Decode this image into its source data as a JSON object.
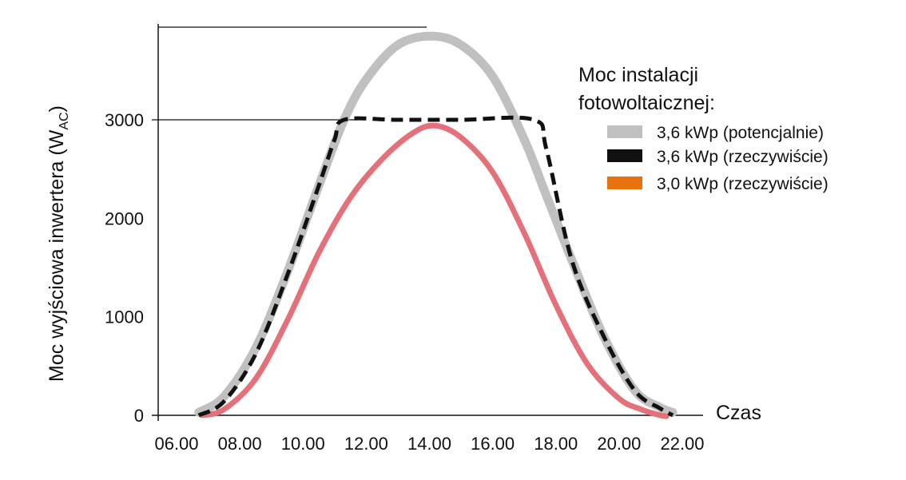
{
  "chart_data": {
    "type": "line",
    "ylabel": "Moc wyjściowa inwertera (W",
    "ylabel_sub": "AC",
    "ylabel_close": ")",
    "xlabel": "Czas",
    "x_ticks": [
      "06.00",
      "08.00",
      "10.00",
      "12.00",
      "14.00",
      "16.00",
      "18.00",
      "20.00",
      "22.00"
    ],
    "y_ticks": [
      "0",
      "1000",
      "2000",
      "3000"
    ],
    "xlim": [
      6,
      22
    ],
    "ylim": [
      0,
      3900
    ],
    "legend_title_line1": "Moc instalacji",
    "legend_title_line2": "fotowoltaicznej:",
    "series": [
      {
        "name": "3,6 kWp (potencjalnie)",
        "color": "#c0c0c0",
        "style": "solid",
        "x": [
          6.7,
          7.5,
          8.5,
          9.5,
          10.5,
          11.3,
          12.0,
          13.0,
          14.05,
          15.0,
          16.0,
          17.0,
          17.7,
          18.5,
          19.5,
          20.5,
          21.3,
          21.7
        ],
        "y": [
          30,
          190,
          680,
          1450,
          2330,
          3000,
          3410,
          3760,
          3850,
          3760,
          3440,
          2800,
          2230,
          1580,
          810,
          250,
          80,
          30
        ]
      },
      {
        "name": "3,6 kWp (rzeczywiście)",
        "color": "#111111",
        "style": "dashed",
        "x": [
          6.7,
          7.5,
          8.5,
          9.5,
          10.5,
          11.0,
          11.3,
          13.0,
          15.0,
          17.3,
          17.7,
          18.5,
          19.5,
          20.5,
          21.3,
          21.7
        ],
        "y": [
          0,
          140,
          620,
          1420,
          2330,
          2800,
          3000,
          3000,
          3000,
          3000,
          2700,
          1580,
          810,
          250,
          70,
          0
        ]
      },
      {
        "name": "3,0 kWp (rzeczywiście)",
        "color": "#e4717a",
        "legend_color": "#e8730e",
        "style": "solid",
        "x": [
          6.8,
          7.5,
          8.5,
          9.5,
          10.5,
          11.5,
          12.5,
          13.5,
          14.2,
          15.0,
          16.0,
          17.0,
          18.0,
          19.0,
          20.0,
          20.7,
          21.3,
          21.5
        ],
        "y": [
          0,
          60,
          370,
          960,
          1650,
          2210,
          2600,
          2870,
          2940,
          2820,
          2470,
          1850,
          1120,
          520,
          170,
          60,
          0,
          -10
        ]
      }
    ],
    "grid": false,
    "legend_position": "right"
  }
}
